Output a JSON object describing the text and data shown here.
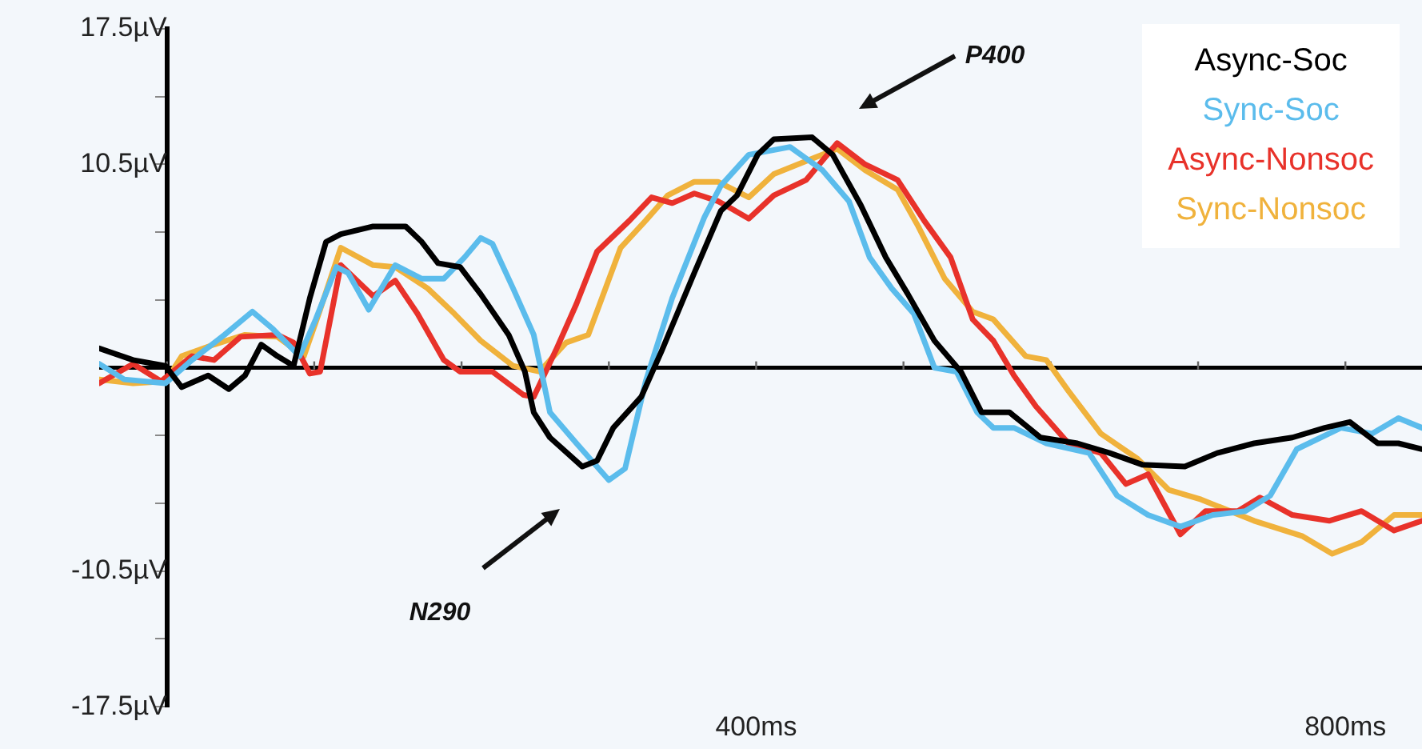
{
  "chart_data": {
    "type": "line",
    "xlim": [
      -46,
      852
    ],
    "xticks": [
      {
        "value": 0,
        "label": null
      },
      {
        "value": 100,
        "label": null
      },
      {
        "value": 200,
        "label": null
      },
      {
        "value": 300,
        "label": null
      },
      {
        "value": 400,
        "label": "400ms"
      },
      {
        "value": 500,
        "label": null
      },
      {
        "value": 600,
        "label": null
      },
      {
        "value": 700,
        "label": null
      },
      {
        "value": 800,
        "label": "800ms"
      }
    ],
    "ylim": [
      -17.5,
      17.5
    ],
    "yticks": [
      {
        "value": -17.5,
        "label": "-17.5µV"
      },
      {
        "value": -14,
        "label": null
      },
      {
        "value": -10.5,
        "label": "-10.5µV"
      },
      {
        "value": -7,
        "label": null
      },
      {
        "value": -3.5,
        "label": null
      },
      {
        "value": 0,
        "label": null
      },
      {
        "value": 3.5,
        "label": null
      },
      {
        "value": 7,
        "label": null
      },
      {
        "value": 10.5,
        "label": "10.5µV"
      },
      {
        "value": 14,
        "label": null
      },
      {
        "value": 17.5,
        "label": "17.5µV"
      }
    ],
    "grid": false,
    "legend": "top right",
    "marker": "none",
    "line_style": "solid",
    "ref_lines": [
      {
        "axis": "y",
        "value": 0,
        "label": null
      }
    ],
    "annotations": [
      "P400",
      "N290"
    ],
    "series": [
      {
        "name": "Async-Soc",
        "color": "#000000",
        "x": [
          -46,
          -23,
          -1,
          10,
          28,
          42,
          53,
          64,
          75,
          86,
          97,
          108,
          118,
          140,
          162,
          173,
          184,
          199,
          213,
          232,
          243,
          249,
          260,
          282,
          292,
          303,
          322,
          336,
          358,
          376,
          387,
          401,
          412,
          438,
          452,
          471,
          488,
          503,
          521,
          539,
          553,
          572,
          593,
          618,
          640,
          662,
          691,
          713,
          738,
          764,
          786,
          803,
          822,
          836,
          852
        ],
        "values": [
          1.0,
          0.4,
          0.1,
          -1.0,
          -0.4,
          -1.1,
          -0.4,
          1.2,
          0.6,
          0.1,
          3.6,
          6.5,
          6.9,
          7.3,
          7.3,
          6.5,
          5.4,
          5.2,
          3.8,
          1.7,
          -0.2,
          -2.3,
          -3.6,
          -5.1,
          -4.8,
          -3.1,
          -1.5,
          0.9,
          4.9,
          8.1,
          8.9,
          11.0,
          11.8,
          11.9,
          11.0,
          8.4,
          5.7,
          3.8,
          1.4,
          -0.2,
          -2.3,
          -2.3,
          -3.6,
          -3.9,
          -4.4,
          -5.0,
          -5.1,
          -4.4,
          -3.9,
          -3.6,
          -3.1,
          -2.8,
          -3.9,
          -3.9,
          -4.2
        ]
      },
      {
        "name": "Sync-Soc",
        "color": "#5bbcec",
        "x": [
          -46,
          -29,
          -1,
          17,
          39,
          58,
          72,
          90,
          101,
          115,
          123,
          137,
          155,
          173,
          188,
          202,
          213,
          221,
          235,
          249,
          260,
          278,
          300,
          311,
          325,
          343,
          365,
          376,
          395,
          423,
          445,
          463,
          477,
          492,
          507,
          521,
          536,
          550,
          561,
          575,
          597,
          626,
          645,
          666,
          688,
          710,
          732,
          749,
          767,
          797,
          818,
          836,
          852
        ],
        "values": [
          0.2,
          -0.6,
          -0.8,
          0.4,
          1.7,
          2.9,
          2.0,
          0.6,
          2.5,
          5.2,
          4.9,
          3.0,
          5.3,
          4.6,
          4.6,
          5.7,
          6.7,
          6.4,
          4.1,
          1.7,
          -2.3,
          -3.9,
          -5.8,
          -5.2,
          -0.7,
          3.6,
          7.8,
          9.4,
          11.0,
          11.4,
          10.2,
          8.6,
          5.7,
          4.1,
          2.8,
          0.0,
          -0.2,
          -2.3,
          -3.1,
          -3.1,
          -3.9,
          -4.4,
          -6.6,
          -7.6,
          -8.2,
          -7.6,
          -7.4,
          -6.6,
          -4.2,
          -3.1,
          -3.4,
          -2.6,
          -3.1
        ]
      },
      {
        "name": "Async-Nonsoc",
        "color": "#e8322a",
        "x": [
          -46,
          -23,
          -4,
          17,
          32,
          50,
          75,
          86,
          97,
          104,
          118,
          140,
          155,
          170,
          188,
          199,
          221,
          242,
          249,
          264,
          278,
          292,
          314,
          329,
          343,
          358,
          374,
          379,
          395,
          412,
          434,
          455,
          474,
          496,
          514,
          532,
          547,
          561,
          575,
          590,
          612,
          634,
          651,
          666,
          688,
          705,
          727,
          742,
          764,
          789,
          811,
          833,
          852
        ],
        "values": [
          -0.8,
          0.2,
          -0.7,
          0.6,
          0.4,
          1.6,
          1.7,
          1.3,
          -0.3,
          -0.2,
          5.3,
          3.7,
          4.5,
          2.8,
          0.4,
          -0.2,
          -0.2,
          -1.4,
          -1.5,
          0.9,
          3.3,
          6.0,
          7.6,
          8.8,
          8.5,
          9.0,
          8.6,
          8.4,
          7.7,
          8.9,
          9.7,
          11.6,
          10.5,
          9.7,
          7.6,
          5.7,
          2.5,
          1.4,
          -0.4,
          -2.0,
          -3.9,
          -4.4,
          -6.0,
          -5.5,
          -8.6,
          -7.4,
          -7.4,
          -6.7,
          -7.6,
          -7.9,
          -7.4,
          -8.4,
          -7.9
        ]
      },
      {
        "name": "Sync-Nonsoc",
        "color": "#f0b23c",
        "x": [
          -46,
          -23,
          -1,
          10,
          32,
          53,
          75,
          93,
          104,
          118,
          140,
          155,
          177,
          195,
          213,
          235,
          253,
          271,
          286,
          308,
          325,
          340,
          358,
          374,
          395,
          412,
          438,
          455,
          474,
          496,
          510,
          528,
          547,
          561,
          583,
          597,
          612,
          634,
          659,
          680,
          702,
          738,
          771,
          791,
          811,
          833,
          852
        ],
        "values": [
          -0.6,
          -0.8,
          -0.7,
          0.6,
          1.2,
          1.7,
          1.6,
          0.6,
          3.0,
          6.2,
          5.3,
          5.2,
          4.1,
          2.8,
          1.4,
          0.1,
          -0.2,
          1.3,
          1.7,
          6.2,
          7.6,
          8.9,
          9.6,
          9.6,
          8.8,
          10.0,
          10.8,
          11.3,
          10.2,
          9.2,
          7.3,
          4.6,
          2.9,
          2.5,
          0.6,
          0.4,
          -1.2,
          -3.4,
          -4.7,
          -6.3,
          -6.8,
          -7.9,
          -8.7,
          -9.6,
          -9.0,
          -7.6,
          -7.6
        ]
      }
    ]
  }
}
